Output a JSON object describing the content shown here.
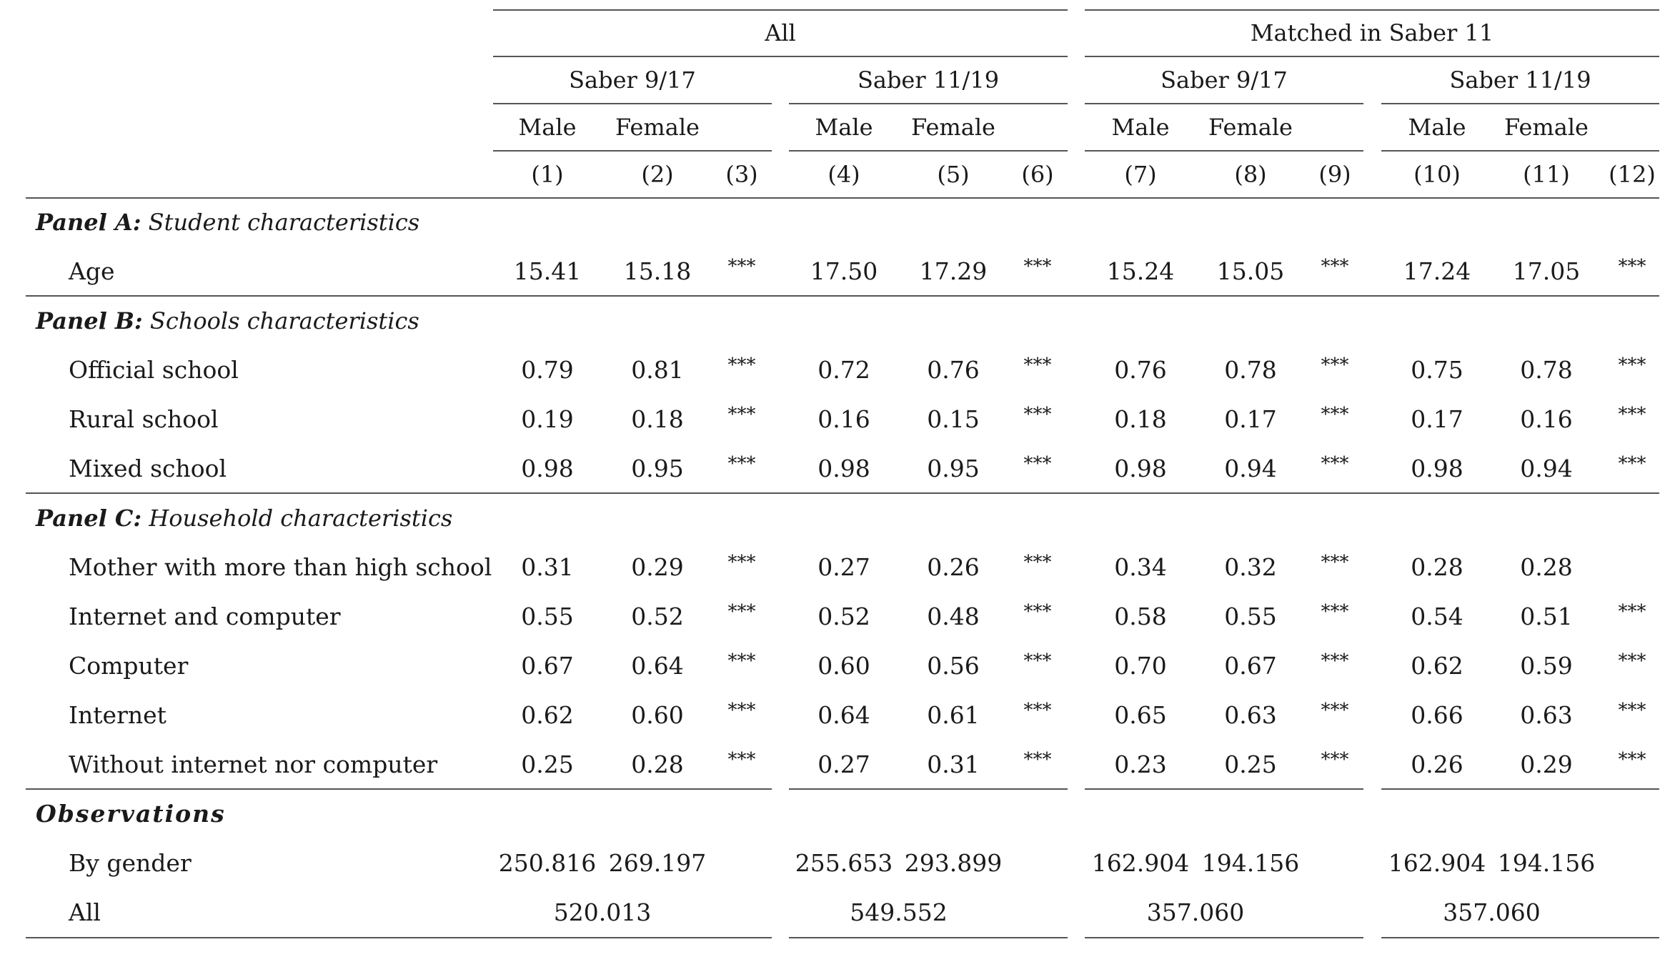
{
  "header": {
    "group_all": "All",
    "group_matched": "Matched in Saber 11",
    "sub_saber9": "Saber 9/17",
    "sub_saber11": "Saber 11/19",
    "male": "Male",
    "female": "Female",
    "col_numbers": [
      "(1)",
      "(2)",
      "(3)",
      "(4)",
      "(5)",
      "(6)",
      "(7)",
      "(8)",
      "(9)",
      "(10)",
      "(11)",
      "(12)"
    ]
  },
  "panels": [
    {
      "label_bold": "Panel A:",
      "label_italic": "Student characteristics",
      "rows": [
        {
          "label": "Age",
          "values": [
            "15.41",
            "15.18",
            "***",
            "17.50",
            "17.29",
            "***",
            "15.24",
            "15.05",
            "***",
            "17.24",
            "17.05",
            "***"
          ]
        }
      ]
    },
    {
      "label_bold": "Panel B:",
      "label_italic": "Schools characteristics",
      "rows": [
        {
          "label": "Official school",
          "values": [
            "0.79",
            "0.81",
            "***",
            "0.72",
            "0.76",
            "***",
            "0.76",
            "0.78",
            "***",
            "0.75",
            "0.78",
            "***"
          ]
        },
        {
          "label": "Rural school",
          "values": [
            "0.19",
            "0.18",
            "***",
            "0.16",
            "0.15",
            "***",
            "0.18",
            "0.17",
            "***",
            "0.17",
            "0.16",
            "***"
          ]
        },
        {
          "label": "Mixed school",
          "values": [
            "0.98",
            "0.95",
            "***",
            "0.98",
            "0.95",
            "***",
            "0.98",
            "0.94",
            "***",
            "0.98",
            "0.94",
            "***"
          ]
        }
      ]
    },
    {
      "label_bold": "Panel C:",
      "label_italic": "Household characteristics",
      "rows": [
        {
          "label": "Mother with more than high school",
          "values": [
            "0.31",
            "0.29",
            "***",
            "0.27",
            "0.26",
            "***",
            "0.34",
            "0.32",
            "***",
            "0.28",
            "0.28",
            ""
          ]
        },
        {
          "label": "Internet and computer",
          "values": [
            "0.55",
            "0.52",
            "***",
            "0.52",
            "0.48",
            "***",
            "0.58",
            "0.55",
            "***",
            "0.54",
            "0.51",
            "***"
          ]
        },
        {
          "label": "Computer",
          "values": [
            "0.67",
            "0.64",
            "***",
            "0.60",
            "0.56",
            "***",
            "0.70",
            "0.67",
            "***",
            "0.62",
            "0.59",
            "***"
          ]
        },
        {
          "label": "Internet",
          "values": [
            "0.62",
            "0.60",
            "***",
            "0.64",
            "0.61",
            "***",
            "0.65",
            "0.63",
            "***",
            "0.66",
            "0.63",
            "***"
          ]
        },
        {
          "label": "Without internet nor computer",
          "values": [
            "0.25",
            "0.28",
            "***",
            "0.27",
            "0.31",
            "***",
            "0.23",
            "0.25",
            "***",
            "0.26",
            "0.29",
            "***"
          ]
        }
      ]
    }
  ],
  "observations": {
    "title": "Observations",
    "by_gender_label": "By gender",
    "by_gender": [
      "250.816",
      "269.197",
      "255.653",
      "293.899",
      "162.904",
      "194.156",
      "162.904",
      "194.156"
    ],
    "all_label": "All",
    "all": [
      "520.013",
      "549.552",
      "357.060",
      "357.060"
    ]
  }
}
